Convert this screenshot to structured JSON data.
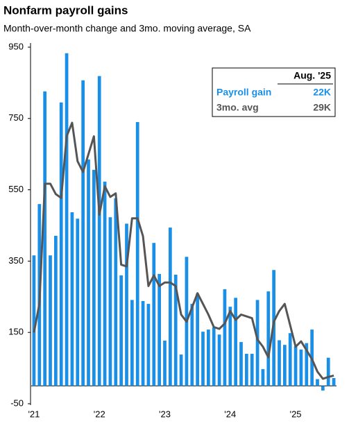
{
  "chart_data": {
    "type": "bar_line",
    "title": "Nonfarm payroll gains",
    "subtitle": "Month-over-month change and 3mo. moving average, SA",
    "categories": [
      "'21",
      null,
      null,
      null,
      null,
      null,
      null,
      null,
      null,
      null,
      null,
      null,
      "'22",
      null,
      null,
      null,
      null,
      null,
      null,
      null,
      null,
      null,
      null,
      null,
      "'23",
      null,
      null,
      null,
      null,
      null,
      null,
      null,
      null,
      null,
      null,
      null,
      "'24",
      null,
      null,
      null,
      null,
      null,
      null,
      null,
      null,
      null,
      null,
      null,
      "'25",
      null,
      null,
      null,
      null,
      null,
      null,
      null
    ],
    "series": [
      {
        "name": "Payroll gain",
        "color": "#1a8fe8",
        "latest_label": "22K",
        "values": [
          366,
          510,
          826,
          366,
          421,
          795,
          933,
          487,
          469,
          857,
          635,
          606,
          869,
          573,
          473,
          526,
          310,
          455,
          241,
          740,
          238,
          230,
          401,
          314,
          127,
          444,
          312,
          88,
          362,
          230,
          259,
          152,
          158,
          164,
          144,
          271,
          222,
          247,
          123,
          90,
          90,
          241,
          47,
          265,
          325,
          128,
          115,
          148,
          111,
          102,
          120,
          158,
          19,
          -13,
          79,
          22
        ]
      },
      {
        "name": "3mo. avg",
        "color": "#555555",
        "latest_label": "29K",
        "values": [
          150,
          230,
          567,
          567,
          538,
          527,
          700,
          738,
          630,
          600,
          650,
          700,
          480,
          560,
          530,
          540,
          340,
          335,
          470,
          470,
          420,
          280,
          310,
          280,
          290,
          290,
          280,
          200,
          180,
          220,
          260,
          230,
          200,
          165,
          160,
          175,
          210,
          185,
          200,
          195,
          190,
          130,
          110,
          80,
          180,
          210,
          230,
          170,
          110,
          125,
          100,
          75,
          40,
          20,
          25,
          29
        ]
      }
    ],
    "legend_header": "Aug. '25",
    "ylim": [
      -50,
      950
    ],
    "yticks": [
      950,
      750,
      550,
      350,
      150,
      -50
    ]
  }
}
